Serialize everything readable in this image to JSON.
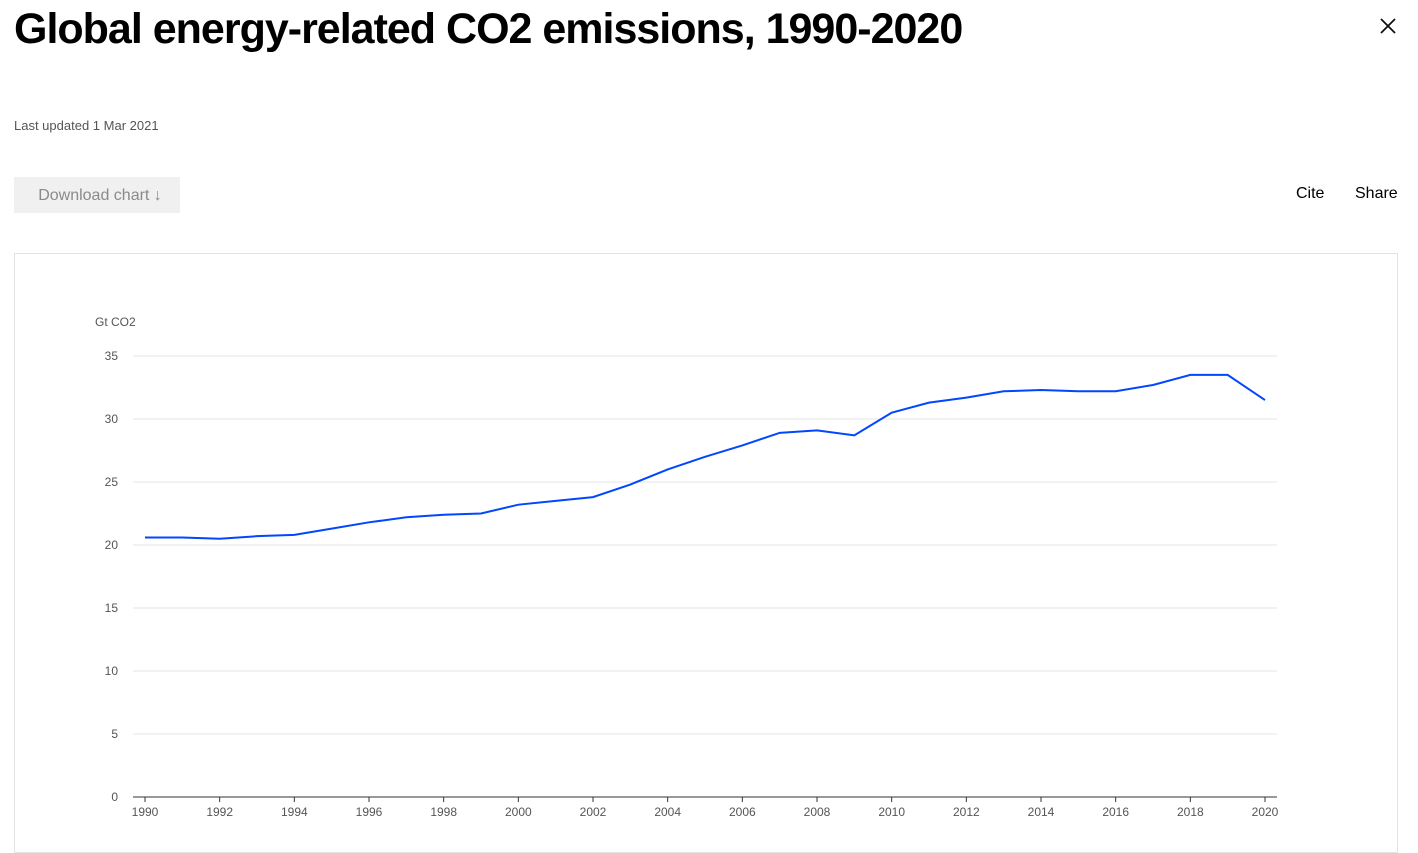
{
  "header": {
    "title": "Global energy-related CO2 emissions, 1990-2020",
    "last_updated": "Last updated 1 Mar 2021",
    "close_icon": "close-x-icon"
  },
  "toolbar": {
    "download_label": "Download chart ↓",
    "cite_label": "Cite",
    "share_label": "Share"
  },
  "chart_data": {
    "type": "line",
    "title": "",
    "xlabel": "",
    "ylabel": "Gt CO2",
    "ylim": [
      0,
      35
    ],
    "yticks": [
      "0",
      "5",
      "10",
      "15",
      "20",
      "25",
      "30",
      "35"
    ],
    "xticks": [
      "1990",
      "1992",
      "1994",
      "1996",
      "1998",
      "2000",
      "2002",
      "2004",
      "2006",
      "2008",
      "2010",
      "2012",
      "2014",
      "2016",
      "2018",
      "2020"
    ],
    "grid": true,
    "line_color": "#0047ff",
    "x": [
      1990,
      1991,
      1992,
      1993,
      1994,
      1995,
      1996,
      1997,
      1998,
      1999,
      2000,
      2001,
      2002,
      2003,
      2004,
      2005,
      2006,
      2007,
      2008,
      2009,
      2010,
      2011,
      2012,
      2013,
      2014,
      2015,
      2016,
      2017,
      2018,
      2019,
      2020
    ],
    "series": [
      {
        "values": [
          20.6,
          20.6,
          20.5,
          20.7,
          20.8,
          21.3,
          21.8,
          22.2,
          22.4,
          22.5,
          23.2,
          23.5,
          23.8,
          24.8,
          26.0,
          27.0,
          27.9,
          28.9,
          29.1,
          28.7,
          30.5,
          31.3,
          31.7,
          32.2,
          32.3,
          32.2,
          32.2,
          32.7,
          33.5,
          33.5,
          31.5
        ]
      }
    ]
  }
}
